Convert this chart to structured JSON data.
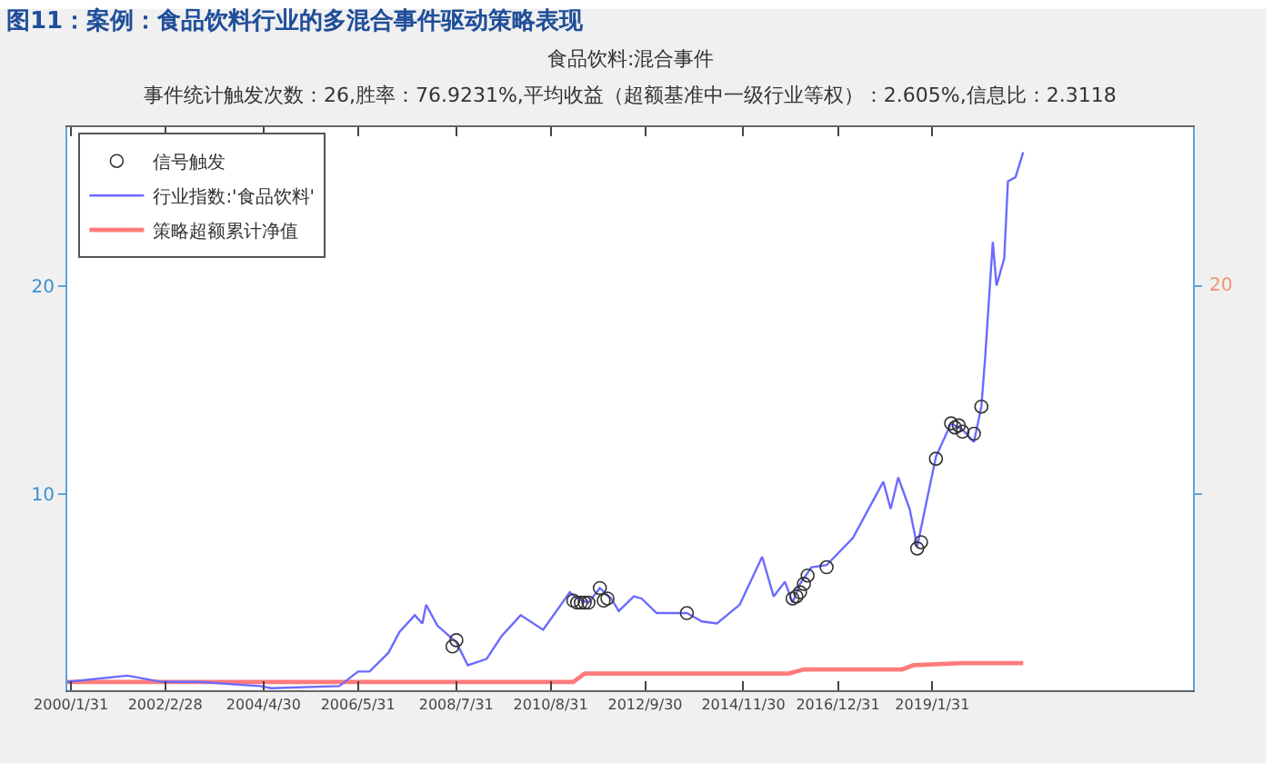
{
  "chart_data": {
    "type": "line",
    "title": "图11：案例：食品饮料行业的多混合事件驱动策略表现",
    "subtitle": "食品饮料:混合事件",
    "annotations": [
      "事件统计触发次数：26,胜率：76.9231%,平均收益（超额基准中一级行业等权）：2.605%,信息比：2.3118",
      "20"
    ],
    "xlim": [
      "2000-01-01",
      "2024-10-31"
    ],
    "xticks": [
      {
        "value": "2000-01-31",
        "label": "2000/1/31"
      },
      {
        "value": "2002-02-28",
        "label": "2002/2/28"
      },
      {
        "value": "2004-04-30",
        "label": "2004/4/30"
      },
      {
        "value": "2006-05-31",
        "label": "2006/5/31"
      },
      {
        "value": "2008-07-31",
        "label": "2008/7/31"
      },
      {
        "value": "2010-08-31",
        "label": "2010/8/31"
      },
      {
        "value": "2012-09-30",
        "label": "2012/9/30"
      },
      {
        "value": "2014-11-30",
        "label": "2014/11/30"
      },
      {
        "value": "2016-12-31",
        "label": "2016/12/31"
      },
      {
        "value": "2019-01-31",
        "label": "2019/1/31"
      }
    ],
    "ylim": [
      0.6,
      27.6
    ],
    "yticks": [
      10,
      20
    ],
    "grid": false,
    "legend": "top left",
    "series": [
      {
        "name": "信号触发",
        "type": "scatter",
        "marker": "circle",
        "color": "#333333",
        "x": [
          "2008-07",
          "2008-08",
          "2011-03",
          "2011-04",
          "2011-05",
          "2011-06",
          "2011-07",
          "2011-10",
          "2011-11",
          "2011-12",
          "2013-09",
          "2016-01",
          "2016-02",
          "2016-03",
          "2016-04",
          "2016-05",
          "2016-10",
          "2018-10",
          "2018-11",
          "2019-03",
          "2019-07",
          "2019-08",
          "2019-09",
          "2019-10",
          "2020-01",
          "2020-03"
        ],
        "values": [
          2.7,
          3.0,
          4.9,
          4.8,
          4.8,
          4.8,
          4.8,
          5.5,
          4.9,
          5.0,
          4.3,
          5.0,
          5.1,
          5.3,
          5.7,
          6.1,
          6.5,
          7.4,
          7.7,
          11.7,
          13.4,
          13.2,
          13.3,
          13.0,
          12.9,
          14.2
        ]
      },
      {
        "name": "行业指数:'食品饮料'",
        "color": "#6b6bff",
        "x": [
          "2000-01",
          "2001-05",
          "2002-02",
          "2002-12",
          "2004-04",
          "2004-07",
          "2006-01",
          "2006-06",
          "2006-09",
          "2007-02",
          "2007-05",
          "2007-09",
          "2007-11",
          "2007-12",
          "2008-03",
          "2008-08",
          "2008-11",
          "2009-04",
          "2009-08",
          "2010-01",
          "2010-07",
          "2011-02",
          "2011-04",
          "2011-07",
          "2011-10",
          "2012-01",
          "2012-03",
          "2012-07",
          "2012-09",
          "2013-01",
          "2013-09",
          "2014-01",
          "2014-05",
          "2014-11",
          "2015-05",
          "2015-08",
          "2015-11",
          "2016-01",
          "2016-03",
          "2016-06",
          "2016-10",
          "2017-05",
          "2018-01",
          "2018-03",
          "2018-05",
          "2018-08",
          "2018-10",
          "2019-03",
          "2019-07",
          "2019-10",
          "2020-01",
          "2020-03",
          "2020-04",
          "2020-06",
          "2020-07",
          "2020-09",
          "2020-10",
          "2020-12",
          "2021-02"
        ],
        "values": [
          1.0,
          1.3,
          1.0,
          1.0,
          0.8,
          0.7,
          0.8,
          1.5,
          1.5,
          2.4,
          3.4,
          4.2,
          3.8,
          4.7,
          3.7,
          2.9,
          1.8,
          2.1,
          3.2,
          4.2,
          3.5,
          5.3,
          5.0,
          4.8,
          5.5,
          5.0,
          4.4,
          5.1,
          5.0,
          4.3,
          4.3,
          3.9,
          3.8,
          4.7,
          7.0,
          5.1,
          5.8,
          4.8,
          5.7,
          6.5,
          6.6,
          7.9,
          10.6,
          9.3,
          10.8,
          9.3,
          7.5,
          11.8,
          13.4,
          13.1,
          12.5,
          14.2,
          16.6,
          22.1,
          20.0,
          21.3,
          25.0,
          25.2,
          26.4
        ]
      },
      {
        "name": "策略超额累计净值",
        "color": "#ff7b7b",
        "x": [
          "2000-01",
          "2008-07",
          "2008-09",
          "2011-03",
          "2011-06",
          "2015-12",
          "2016-04",
          "2018-06",
          "2018-09",
          "2019-10",
          "2020-03",
          "2021-02"
        ],
        "values": [
          1.0,
          1.0,
          1.0,
          1.0,
          1.4,
          1.4,
          1.6,
          1.6,
          1.8,
          1.9,
          1.9,
          1.9
        ]
      }
    ]
  }
}
